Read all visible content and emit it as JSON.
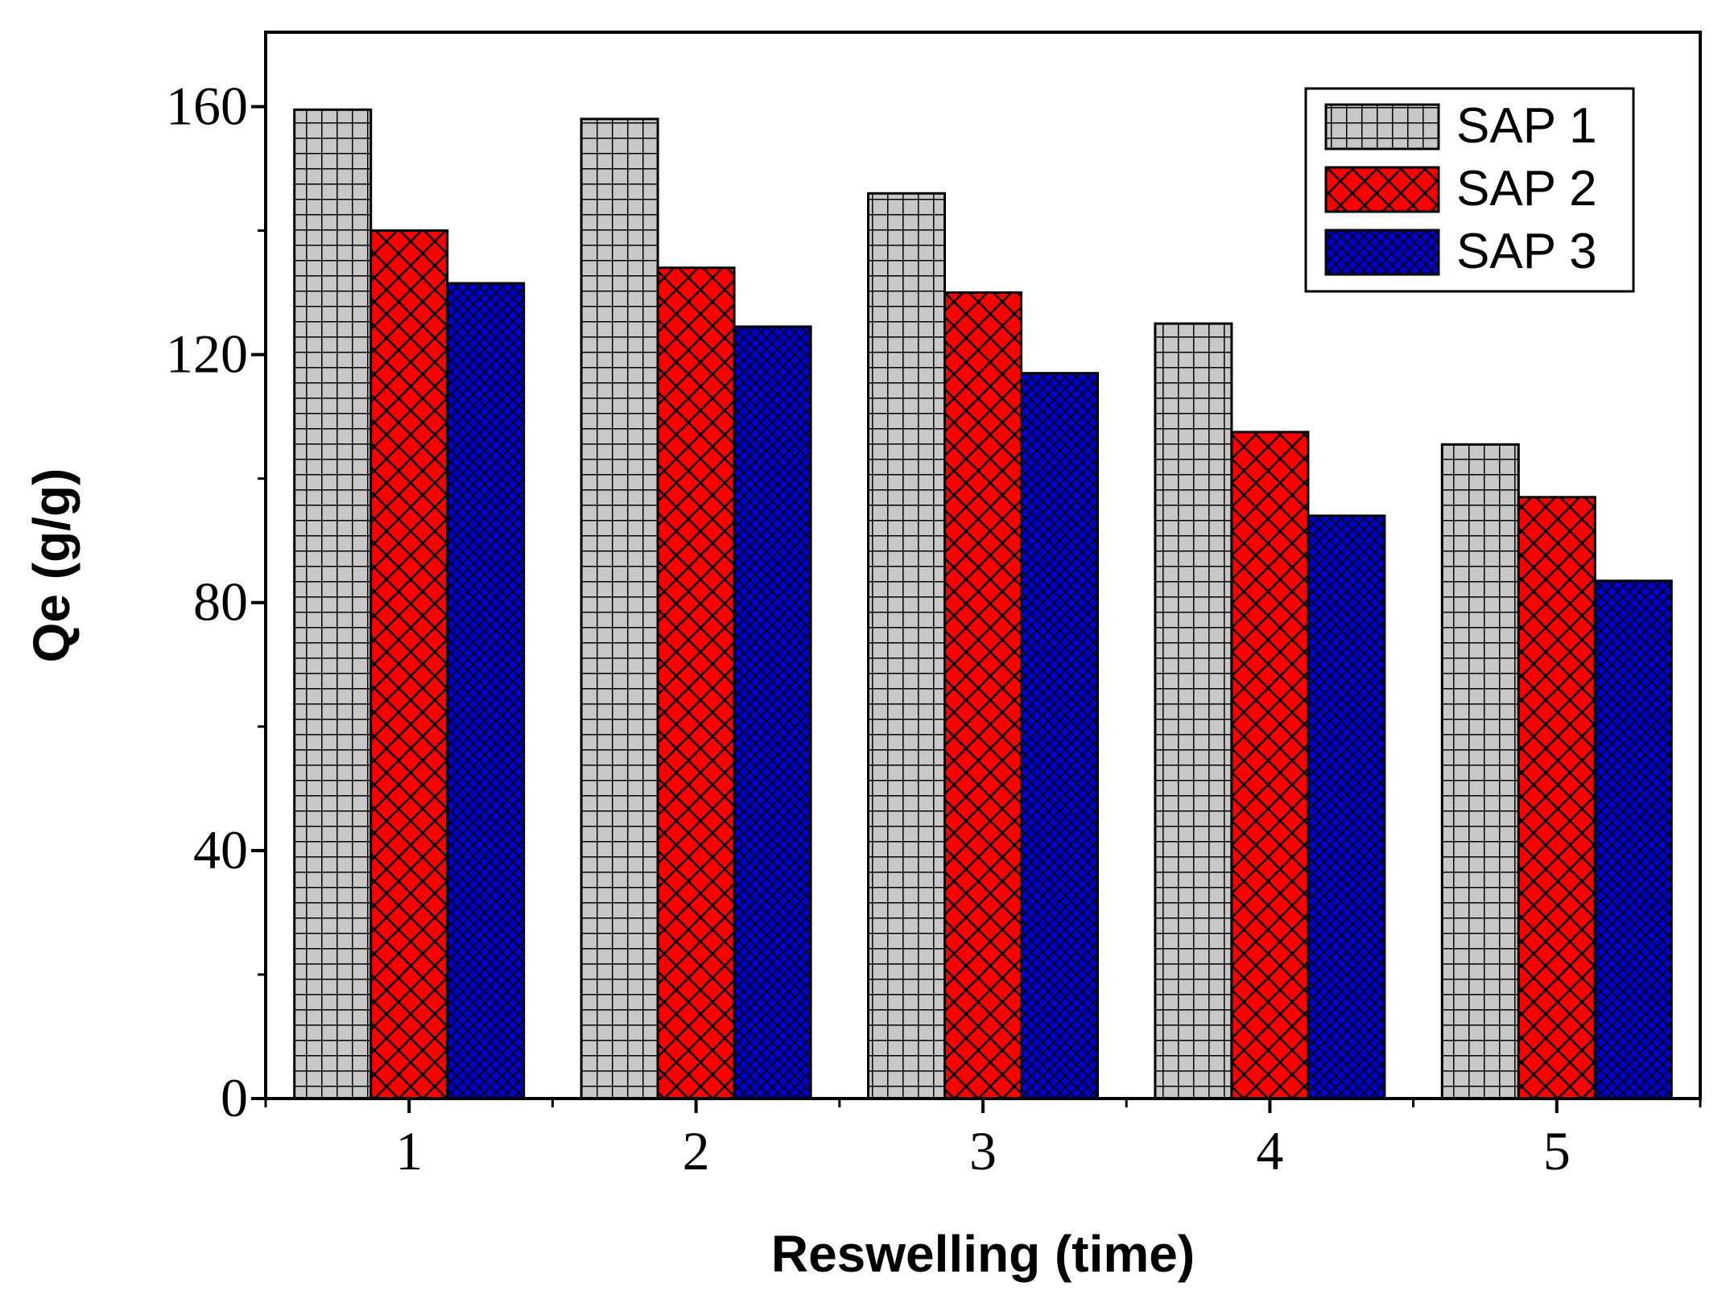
{
  "chart_data": {
    "type": "bar",
    "title": "",
    "xlabel": "Reswelling (time)",
    "ylabel": "Qe (g/g)",
    "categories": [
      "1",
      "2",
      "3",
      "4",
      "5"
    ],
    "ylim": [
      0,
      172
    ],
    "yticks": [
      0,
      40,
      80,
      120,
      160
    ],
    "yticks_minor": [
      20,
      60,
      100,
      140
    ],
    "grid": false,
    "legend_position": "top-right",
    "series": [
      {
        "name": "SAP 1",
        "values": [
          159.5,
          158,
          146,
          125,
          105.5
        ],
        "color": "#c8c8c8",
        "pattern": "grid"
      },
      {
        "name": "SAP 2",
        "values": [
          140,
          134,
          130,
          107.5,
          97
        ],
        "color": "#ff0000",
        "pattern": "diagonal-cross"
      },
      {
        "name": "SAP 3",
        "values": [
          131.5,
          124.5,
          117,
          94,
          83.5
        ],
        "color": "#0000cc",
        "pattern": "fine-cross"
      }
    ]
  }
}
